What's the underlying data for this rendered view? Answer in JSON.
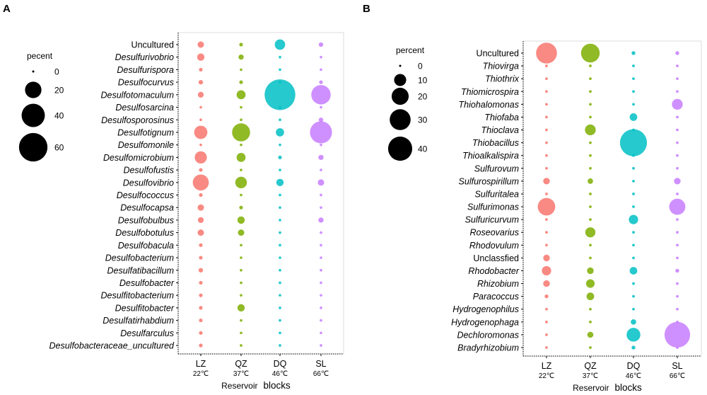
{
  "chart_data": [
    {
      "type": "bubble",
      "panel_label": "A",
      "legend": {
        "title": "pecent",
        "values": [
          0,
          20,
          40,
          60
        ],
        "labels": [
          "0",
          "20",
          "40",
          "60"
        ]
      },
      "x_categories": [
        "LZ",
        "QZ",
        "DQ",
        "SL"
      ],
      "x_temperatures": [
        "22℃",
        "37℃",
        "46℃",
        "66℃"
      ],
      "xlabel_left": "Reservoir",
      "xlabel_right": "blocks",
      "series_colors": [
        "#F8766D",
        "#7CAE00",
        "#00BFC4",
        "#C77CFF"
      ],
      "rows": [
        {
          "label": "Uncultured",
          "italic": false,
          "values": [
            3,
            1,
            8,
            1.5
          ]
        },
        {
          "label": "Desulfurivobrio",
          "italic": true,
          "values": [
            4,
            2,
            0.5,
            0.5
          ]
        },
        {
          "label": "Desulfurispora",
          "italic": true,
          "values": [
            1,
            0.5,
            0.5,
            0.5
          ]
        },
        {
          "label": "Desulfocurvus",
          "italic": true,
          "values": [
            1.5,
            1,
            0.5,
            1
          ]
        },
        {
          "label": "Desulfotomaculum",
          "italic": true,
          "values": [
            2.5,
            6,
            70,
            28
          ]
        },
        {
          "label": "Desulfosarcina",
          "italic": true,
          "values": [
            0.5,
            0.5,
            0.5,
            0.5
          ]
        },
        {
          "label": "Desulfosporosinus",
          "italic": true,
          "values": [
            0.5,
            0.5,
            0.5,
            1.5
          ]
        },
        {
          "label": "Desulfotignum",
          "italic": true,
          "values": [
            13,
            24,
            5,
            36
          ]
        },
        {
          "label": "Desulfomonile",
          "italic": true,
          "values": [
            0.5,
            0.5,
            0.5,
            0.5
          ]
        },
        {
          "label": "Desulfomicrobium",
          "italic": true,
          "values": [
            11,
            6,
            1,
            2
          ]
        },
        {
          "label": "Desulfofustis",
          "italic": true,
          "values": [
            1,
            0.5,
            0.5,
            0.5
          ]
        },
        {
          "label": "Desulfovibrio",
          "italic": true,
          "values": [
            19,
            10,
            4,
            3
          ]
        },
        {
          "label": "Desulfococcus",
          "italic": true,
          "values": [
            1,
            0.5,
            0.5,
            0.5
          ]
        },
        {
          "label": "Desulfocapsa",
          "italic": true,
          "values": [
            3,
            1,
            0.5,
            0.5
          ]
        },
        {
          "label": "Desulfobulbus",
          "italic": true,
          "values": [
            2.5,
            4,
            0.5,
            2
          ]
        },
        {
          "label": "Desulfobotulus",
          "italic": true,
          "values": [
            3,
            3,
            0.5,
            0.5
          ]
        },
        {
          "label": "Desulfobacula",
          "italic": true,
          "values": [
            1,
            0.5,
            0.5,
            0.5
          ]
        },
        {
          "label": "Desulfobacterium",
          "italic": true,
          "values": [
            1,
            0.5,
            0.5,
            0.5
          ]
        },
        {
          "label": "Desulfatibacillum",
          "italic": true,
          "values": [
            1.5,
            0.5,
            0.5,
            0.5
          ]
        },
        {
          "label": "Desulfobacter",
          "italic": true,
          "values": [
            1,
            0.5,
            0.5,
            0.5
          ]
        },
        {
          "label": "Desulfitobacterium",
          "italic": true,
          "values": [
            1,
            0.5,
            0.5,
            0.5
          ]
        },
        {
          "label": "Desulfitobacter",
          "italic": true,
          "values": [
            1,
            4,
            0.5,
            0.5
          ]
        },
        {
          "label": "Desulfatirhabdium",
          "italic": true,
          "values": [
            1,
            0.5,
            0.5,
            0.5
          ]
        },
        {
          "label": "Desulfarculus",
          "italic": true,
          "values": [
            1,
            0.5,
            0.5,
            0.5
          ]
        },
        {
          "label": "Desulfobacteraceae_uncultured",
          "italic": true,
          "values": [
            1,
            0.5,
            0.5,
            0.5
          ]
        }
      ]
    },
    {
      "type": "bubble",
      "panel_label": "B",
      "legend": {
        "title": "percent",
        "values": [
          0,
          10,
          20,
          30,
          40
        ],
        "labels": [
          "0",
          "10",
          "20",
          "30",
          "40"
        ]
      },
      "x_categories": [
        "LZ",
        "QZ",
        "DQ",
        "SL"
      ],
      "x_temperatures": [
        "22℃",
        "37℃",
        "46℃",
        "66℃"
      ],
      "xlabel_left": "Reservoir",
      "xlabel_right": "blocks",
      "series_colors": [
        "#F8766D",
        "#7CAE00",
        "#00BFC4",
        "#C77CFF"
      ],
      "rows": [
        {
          "label": "Uncultured",
          "italic": false,
          "values": [
            30,
            24,
            1,
            1
          ]
        },
        {
          "label": "Thiovirga",
          "italic": true,
          "values": [
            0.5,
            0.5,
            0.5,
            0.5
          ]
        },
        {
          "label": "Thiothrix",
          "italic": true,
          "values": [
            0.5,
            0.5,
            0.5,
            0.5
          ]
        },
        {
          "label": "Thiomicrospira",
          "italic": true,
          "values": [
            0.5,
            0.5,
            0.5,
            0.5
          ]
        },
        {
          "label": "Thiohalomonas",
          "italic": true,
          "values": [
            0.5,
            0.5,
            0.5,
            8
          ]
        },
        {
          "label": "Thiofaba",
          "italic": true,
          "values": [
            0.5,
            0.5,
            4,
            0.5
          ]
        },
        {
          "label": "Thioclava",
          "italic": true,
          "values": [
            0.5,
            8,
            0.5,
            0.5
          ]
        },
        {
          "label": "Thiobacillus",
          "italic": true,
          "values": [
            0.5,
            0.5,
            50,
            0.5
          ]
        },
        {
          "label": "Thioalkalispira",
          "italic": true,
          "values": [
            0.5,
            0.5,
            0.5,
            0.5
          ]
        },
        {
          "label": "Sulfurovum",
          "italic": true,
          "values": [
            0.5,
            0.5,
            0.5,
            0.5
          ]
        },
        {
          "label": "Sulfurospirillum",
          "italic": true,
          "values": [
            3,
            2,
            0.5,
            3
          ]
        },
        {
          "label": "Sulfuritalea",
          "italic": true,
          "values": [
            0.5,
            0.5,
            0.5,
            0.5
          ]
        },
        {
          "label": "Sulfurimonas",
          "italic": true,
          "values": [
            21,
            0.5,
            0.5,
            18
          ]
        },
        {
          "label": "Sulfuricurvum",
          "italic": true,
          "values": [
            0.5,
            0.5,
            6,
            0.5
          ]
        },
        {
          "label": "Roseovarius",
          "italic": true,
          "values": [
            0.5,
            7,
            0.5,
            0.5
          ]
        },
        {
          "label": "Rhodovulum",
          "italic": true,
          "values": [
            0.5,
            0.5,
            0.5,
            0.5
          ]
        },
        {
          "label": "Unclassfied",
          "italic": false,
          "values": [
            3,
            0.5,
            0.5,
            0.5
          ]
        },
        {
          "label": "Rhodobacter",
          "italic": true,
          "values": [
            6,
            3,
            4,
            1
          ]
        },
        {
          "label": "Rhizobium",
          "italic": true,
          "values": [
            3,
            5,
            0.5,
            0.5
          ]
        },
        {
          "label": "Paracoccus",
          "italic": true,
          "values": [
            1,
            4,
            0.5,
            0.5
          ]
        },
        {
          "label": "Hydrogenophilus",
          "italic": true,
          "values": [
            0.5,
            0.5,
            0.5,
            0.5
          ]
        },
        {
          "label": "Hydrogenophaga",
          "italic": true,
          "values": [
            0.5,
            0.5,
            2,
            0.5
          ]
        },
        {
          "label": "Dechloromonas",
          "italic": true,
          "values": [
            0.5,
            2.5,
            13,
            45
          ]
        },
        {
          "label": "Bradyrhizobium",
          "italic": true,
          "values": [
            0.5,
            0.5,
            1,
            0.5
          ]
        }
      ]
    }
  ]
}
